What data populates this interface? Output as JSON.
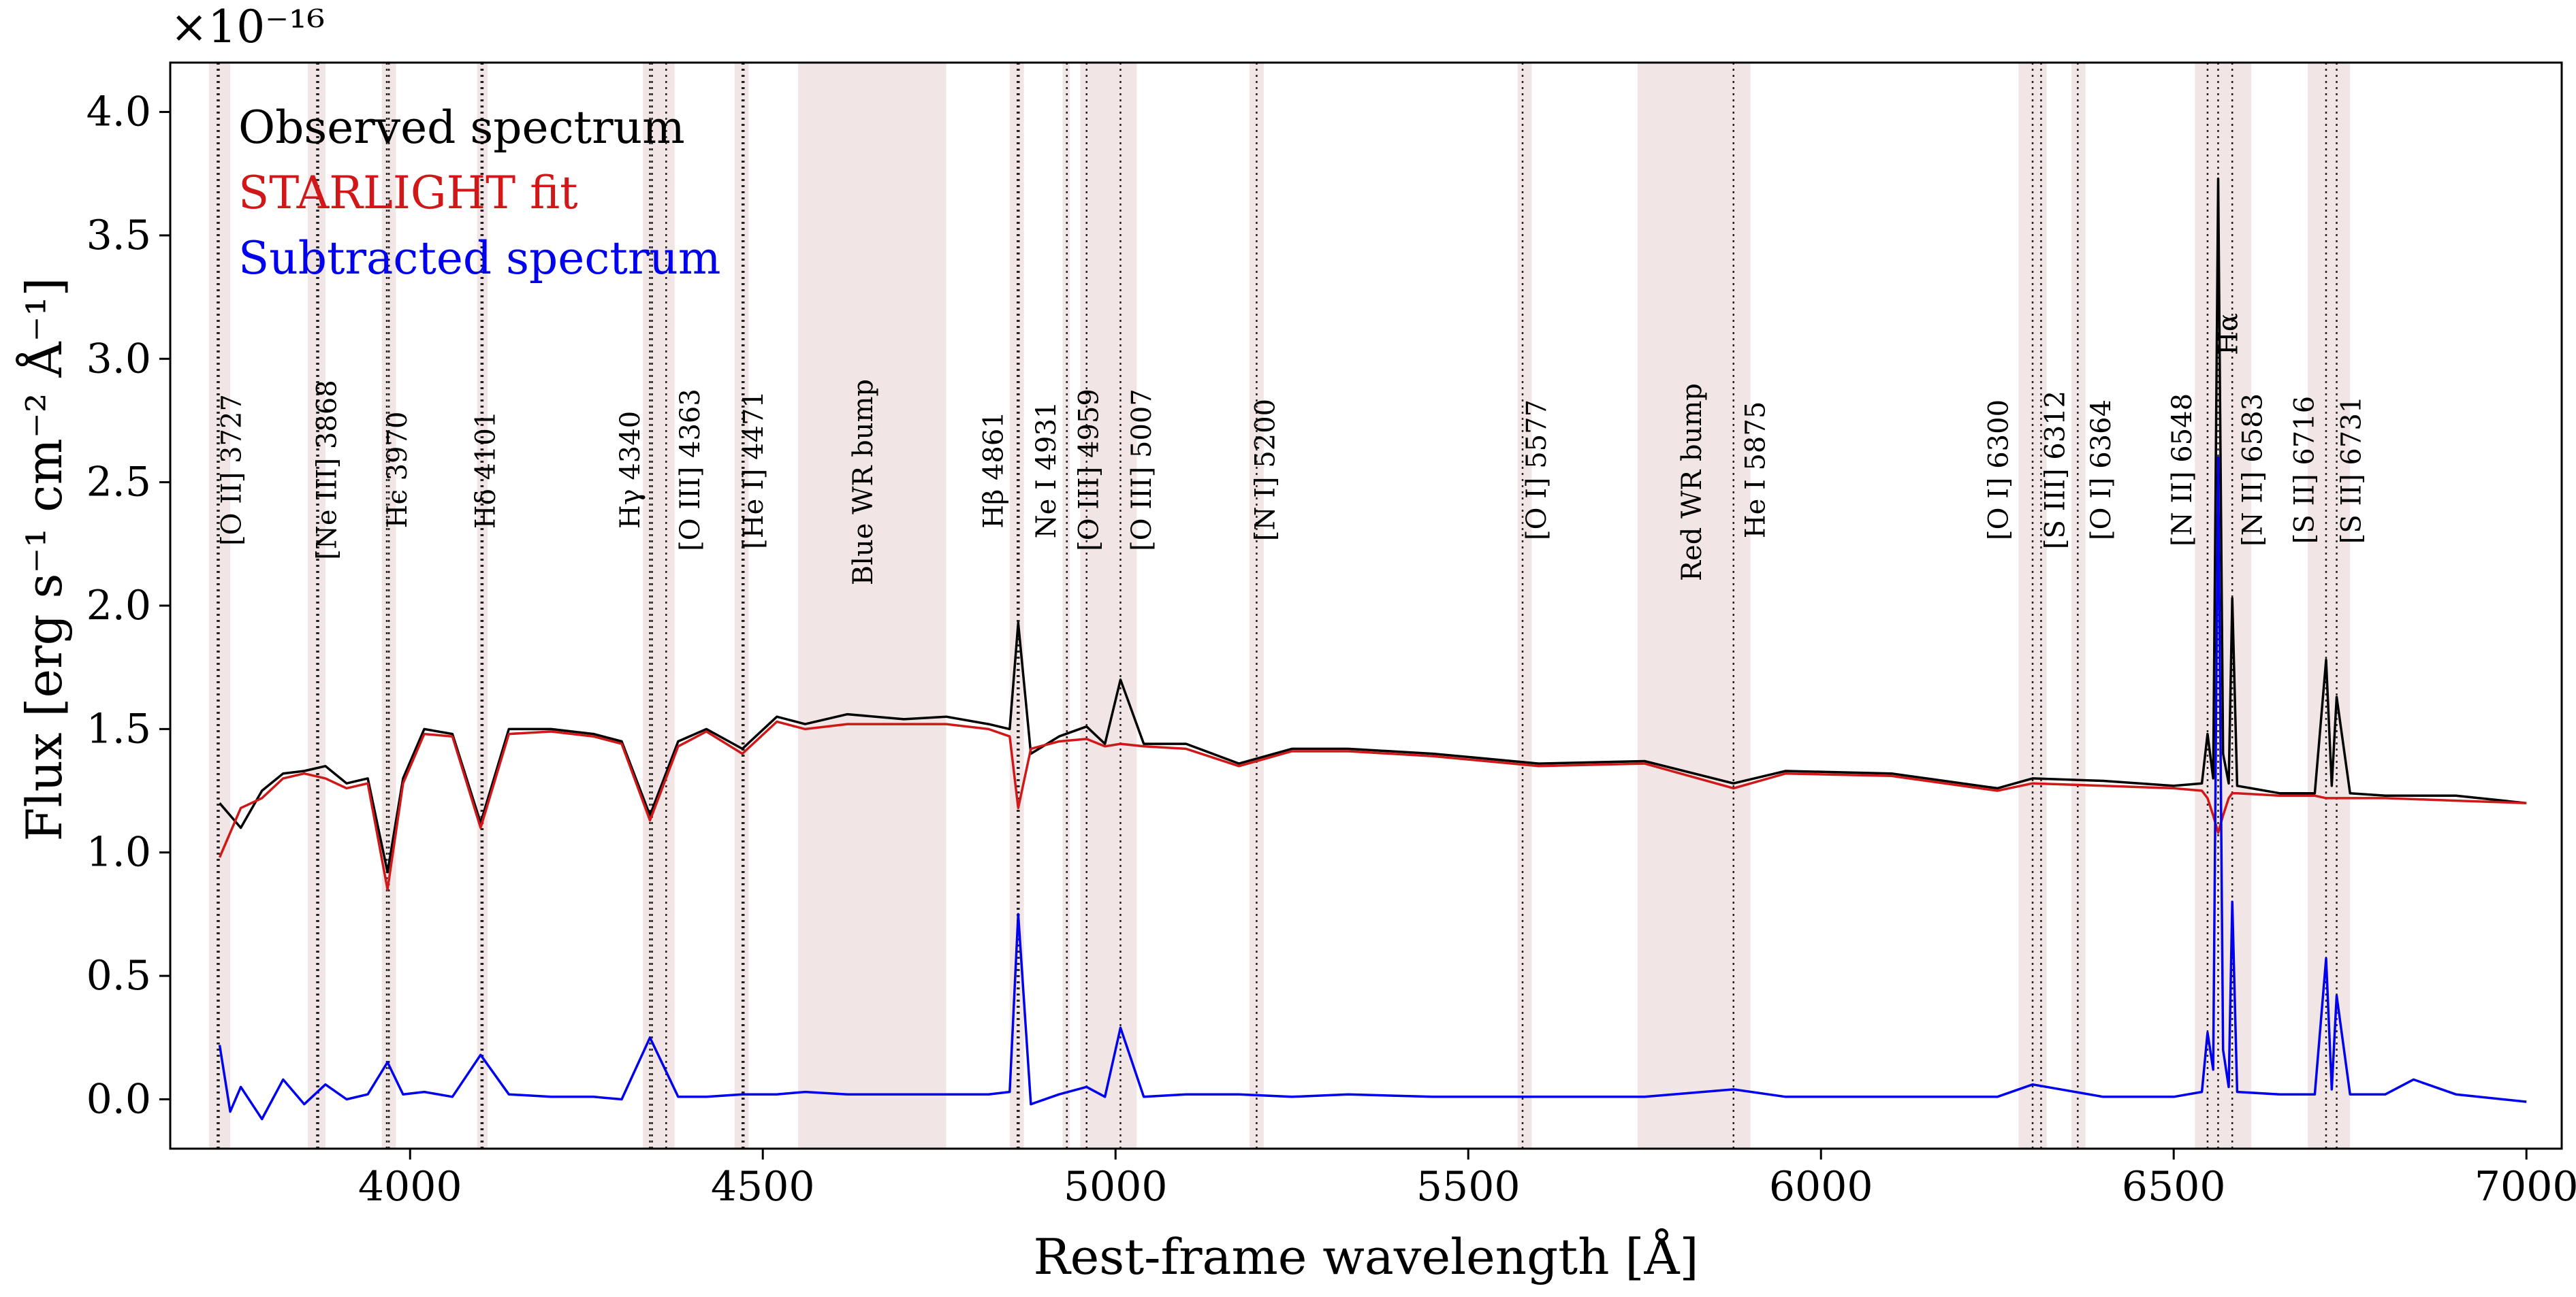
{
  "chart_data": {
    "type": "line",
    "xlabel": "Rest-frame wavelength [Å]",
    "ylabel": "Flux [erg s⁻¹ cm⁻² Å⁻¹]",
    "y_multiplier": "×10⁻¹⁶",
    "xlim": [
      3660,
      7050
    ],
    "ylim": [
      -0.2,
      4.2
    ],
    "x_ticks": [
      4000,
      4500,
      5000,
      5500,
      6000,
      6500,
      7000
    ],
    "y_ticks": [
      "0.0",
      "0.5",
      "1.0",
      "1.5",
      "2.0",
      "2.5",
      "3.0",
      "3.5",
      "4.0"
    ],
    "grid": false,
    "legend_position": "top-left",
    "colors": {
      "observed": "#000000",
      "fit": "#d01818",
      "subtracted": "#0000ee",
      "band": "#e8cfcf",
      "line_marker": "#222222"
    },
    "series": [
      {
        "name": "Observed spectrum",
        "key": "observed",
        "x": [
          3730,
          3760,
          3790,
          3820,
          3850,
          3880,
          3910,
          3940,
          3968,
          3990,
          4020,
          4060,
          4100,
          4140,
          4200,
          4260,
          4300,
          4340,
          4380,
          4420,
          4471,
          4520,
          4560,
          4620,
          4700,
          4760,
          4820,
          4850,
          4862,
          4880,
          4920,
          4959,
          4985,
          5007,
          5040,
          5100,
          5175,
          5250,
          5330,
          5450,
          5600,
          5750,
          5876,
          5950,
          6100,
          6250,
          6300,
          6400,
          6500,
          6540,
          6548,
          6556,
          6563,
          6570,
          6578,
          6583,
          6590,
          6650,
          6700,
          6716,
          6724,
          6731,
          6750,
          6800,
          6900,
          7000
        ],
        "y": [
          1.2,
          1.1,
          1.25,
          1.32,
          1.33,
          1.35,
          1.28,
          1.3,
          0.92,
          1.3,
          1.5,
          1.48,
          1.12,
          1.5,
          1.5,
          1.48,
          1.45,
          1.15,
          1.45,
          1.5,
          1.42,
          1.55,
          1.52,
          1.56,
          1.54,
          1.55,
          1.52,
          1.5,
          1.93,
          1.4,
          1.47,
          1.51,
          1.44,
          1.7,
          1.44,
          1.44,
          1.36,
          1.42,
          1.42,
          1.4,
          1.36,
          1.37,
          1.28,
          1.33,
          1.32,
          1.26,
          1.3,
          1.29,
          1.27,
          1.28,
          1.48,
          1.3,
          3.73,
          1.4,
          1.28,
          2.03,
          1.27,
          1.24,
          1.24,
          1.78,
          1.27,
          1.63,
          1.24,
          1.23,
          1.23,
          1.2
        ]
      },
      {
        "name": "STARLIGHT fit",
        "key": "fit",
        "x": [
          3730,
          3760,
          3790,
          3820,
          3850,
          3880,
          3910,
          3940,
          3968,
          3990,
          4020,
          4060,
          4100,
          4140,
          4200,
          4260,
          4300,
          4340,
          4380,
          4420,
          4471,
          4520,
          4560,
          4620,
          4700,
          4760,
          4820,
          4850,
          4862,
          4880,
          4920,
          4959,
          4985,
          5007,
          5040,
          5100,
          5175,
          5250,
          5330,
          5450,
          5600,
          5750,
          5876,
          5950,
          6100,
          6250,
          6300,
          6400,
          6500,
          6540,
          6548,
          6556,
          6563,
          6570,
          6578,
          6583,
          6590,
          6650,
          6700,
          6716,
          6724,
          6731,
          6750,
          6800,
          6900,
          7000
        ],
        "y": [
          0.98,
          1.18,
          1.22,
          1.3,
          1.32,
          1.3,
          1.26,
          1.28,
          0.85,
          1.28,
          1.48,
          1.47,
          1.1,
          1.48,
          1.49,
          1.47,
          1.44,
          1.13,
          1.43,
          1.49,
          1.4,
          1.53,
          1.5,
          1.52,
          1.52,
          1.52,
          1.5,
          1.47,
          1.18,
          1.42,
          1.45,
          1.46,
          1.43,
          1.44,
          1.43,
          1.42,
          1.35,
          1.41,
          1.41,
          1.39,
          1.35,
          1.36,
          1.26,
          1.32,
          1.31,
          1.25,
          1.28,
          1.27,
          1.26,
          1.25,
          1.22,
          1.15,
          1.08,
          1.15,
          1.22,
          1.24,
          1.24,
          1.23,
          1.23,
          1.22,
          1.22,
          1.22,
          1.22,
          1.22,
          1.21,
          1.2
        ]
      },
      {
        "name": "Subtracted spectrum",
        "key": "subtracted",
        "x": [
          3730,
          3745,
          3760,
          3790,
          3820,
          3850,
          3880,
          3910,
          3940,
          3968,
          3990,
          4020,
          4060,
          4100,
          4140,
          4200,
          4260,
          4300,
          4340,
          4380,
          4420,
          4471,
          4520,
          4560,
          4620,
          4700,
          4760,
          4820,
          4850,
          4862,
          4880,
          4920,
          4959,
          4985,
          5007,
          5040,
          5100,
          5175,
          5250,
          5330,
          5450,
          5600,
          5750,
          5876,
          5950,
          6100,
          6250,
          6300,
          6400,
          6500,
          6540,
          6548,
          6556,
          6563,
          6570,
          6578,
          6583,
          6590,
          6650,
          6700,
          6716,
          6724,
          6731,
          6750,
          6800,
          6840,
          6900,
          7000
        ],
        "y": [
          0.22,
          -0.05,
          0.05,
          -0.08,
          0.08,
          -0.02,
          0.06,
          0.0,
          0.02,
          0.15,
          0.02,
          0.03,
          0.01,
          0.18,
          0.02,
          0.01,
          0.01,
          0.0,
          0.25,
          0.01,
          0.01,
          0.02,
          0.02,
          0.03,
          0.02,
          0.02,
          0.02,
          0.02,
          0.03,
          0.75,
          -0.02,
          0.02,
          0.05,
          0.01,
          0.29,
          0.01,
          0.02,
          0.02,
          0.01,
          0.02,
          0.01,
          0.01,
          0.01,
          0.04,
          0.01,
          0.01,
          0.01,
          0.06,
          0.01,
          0.01,
          0.03,
          0.27,
          0.12,
          2.6,
          0.2,
          0.05,
          0.8,
          0.03,
          0.02,
          0.02,
          0.57,
          0.04,
          0.42,
          0.02,
          0.02,
          0.08,
          0.02,
          -0.01
        ]
      }
    ],
    "shaded_bands": [
      [
        3715,
        3745
      ],
      [
        3855,
        3880
      ],
      [
        3960,
        3980
      ],
      [
        4095,
        4110
      ],
      [
        4330,
        4375
      ],
      [
        4460,
        4480
      ],
      [
        4550,
        4760
      ],
      [
        4850,
        4870
      ],
      [
        4925,
        4935
      ],
      [
        4950,
        5030
      ],
      [
        5190,
        5210
      ],
      [
        5570,
        5590
      ],
      [
        5740,
        5900
      ],
      [
        6280,
        6320
      ],
      [
        6355,
        6375
      ],
      [
        6530,
        6610
      ],
      [
        6690,
        6750
      ]
    ],
    "emission_lines": [
      3727,
      3729,
      3868,
      3870,
      3967,
      3970,
      4101,
      4103,
      4340,
      4343,
      4363,
      4471,
      4473,
      4861,
      4863,
      4931,
      4959,
      5007,
      5200,
      5577,
      5876,
      6300,
      6312,
      6364,
      6548,
      6563,
      6583,
      6716,
      6731
    ],
    "annotations": [
      {
        "text": "[O II] 3727",
        "x": 3760,
        "y": 2.55
      },
      {
        "text": "[Ne III] 3868",
        "x": 3895,
        "y": 2.55
      },
      {
        "text": "Hϵ 3970",
        "x": 3995,
        "y": 2.55
      },
      {
        "text": "Hδ 4101",
        "x": 4120,
        "y": 2.55
      },
      {
        "text": "Hγ 4340",
        "x": 4325,
        "y": 2.55
      },
      {
        "text": "[O III] 4363",
        "x": 4410,
        "y": 2.55
      },
      {
        "text": "[He I] 4471",
        "x": 4500,
        "y": 2.55
      },
      {
        "text": "Blue WR bump",
        "x": 4655,
        "y": 2.5
      },
      {
        "text": "Hβ 4861",
        "x": 4840,
        "y": 2.55
      },
      {
        "text": "Ne I 4931",
        "x": 4915,
        "y": 2.55
      },
      {
        "text": "[O III] 4959",
        "x": 4975,
        "y": 2.55
      },
      {
        "text": "[O III] 5007",
        "x": 5050,
        "y": 2.55
      },
      {
        "text": "[N I] 5200",
        "x": 5225,
        "y": 2.55
      },
      {
        "text": "[O I] 5577",
        "x": 5610,
        "y": 2.55
      },
      {
        "text": "Red WR bump",
        "x": 5830,
        "y": 2.5
      },
      {
        "text": "He I 5875",
        "x": 5920,
        "y": 2.55
      },
      {
        "text": "[O I] 6300",
        "x": 6265,
        "y": 2.55
      },
      {
        "text": "[S III] 6312",
        "x": 6345,
        "y": 2.55
      },
      {
        "text": "[O I] 6364",
        "x": 6410,
        "y": 2.55
      },
      {
        "text": "[N II] 6548",
        "x": 6525,
        "y": 2.55
      },
      {
        "text": "Hα",
        "x": 6590,
        "y": 3.1
      },
      {
        "text": "[N II] 6583",
        "x": 6625,
        "y": 2.55
      },
      {
        "text": "[S II] 6716",
        "x": 6698,
        "y": 2.55
      },
      {
        "text": "[S II] 6731",
        "x": 6765,
        "y": 2.55
      }
    ]
  }
}
